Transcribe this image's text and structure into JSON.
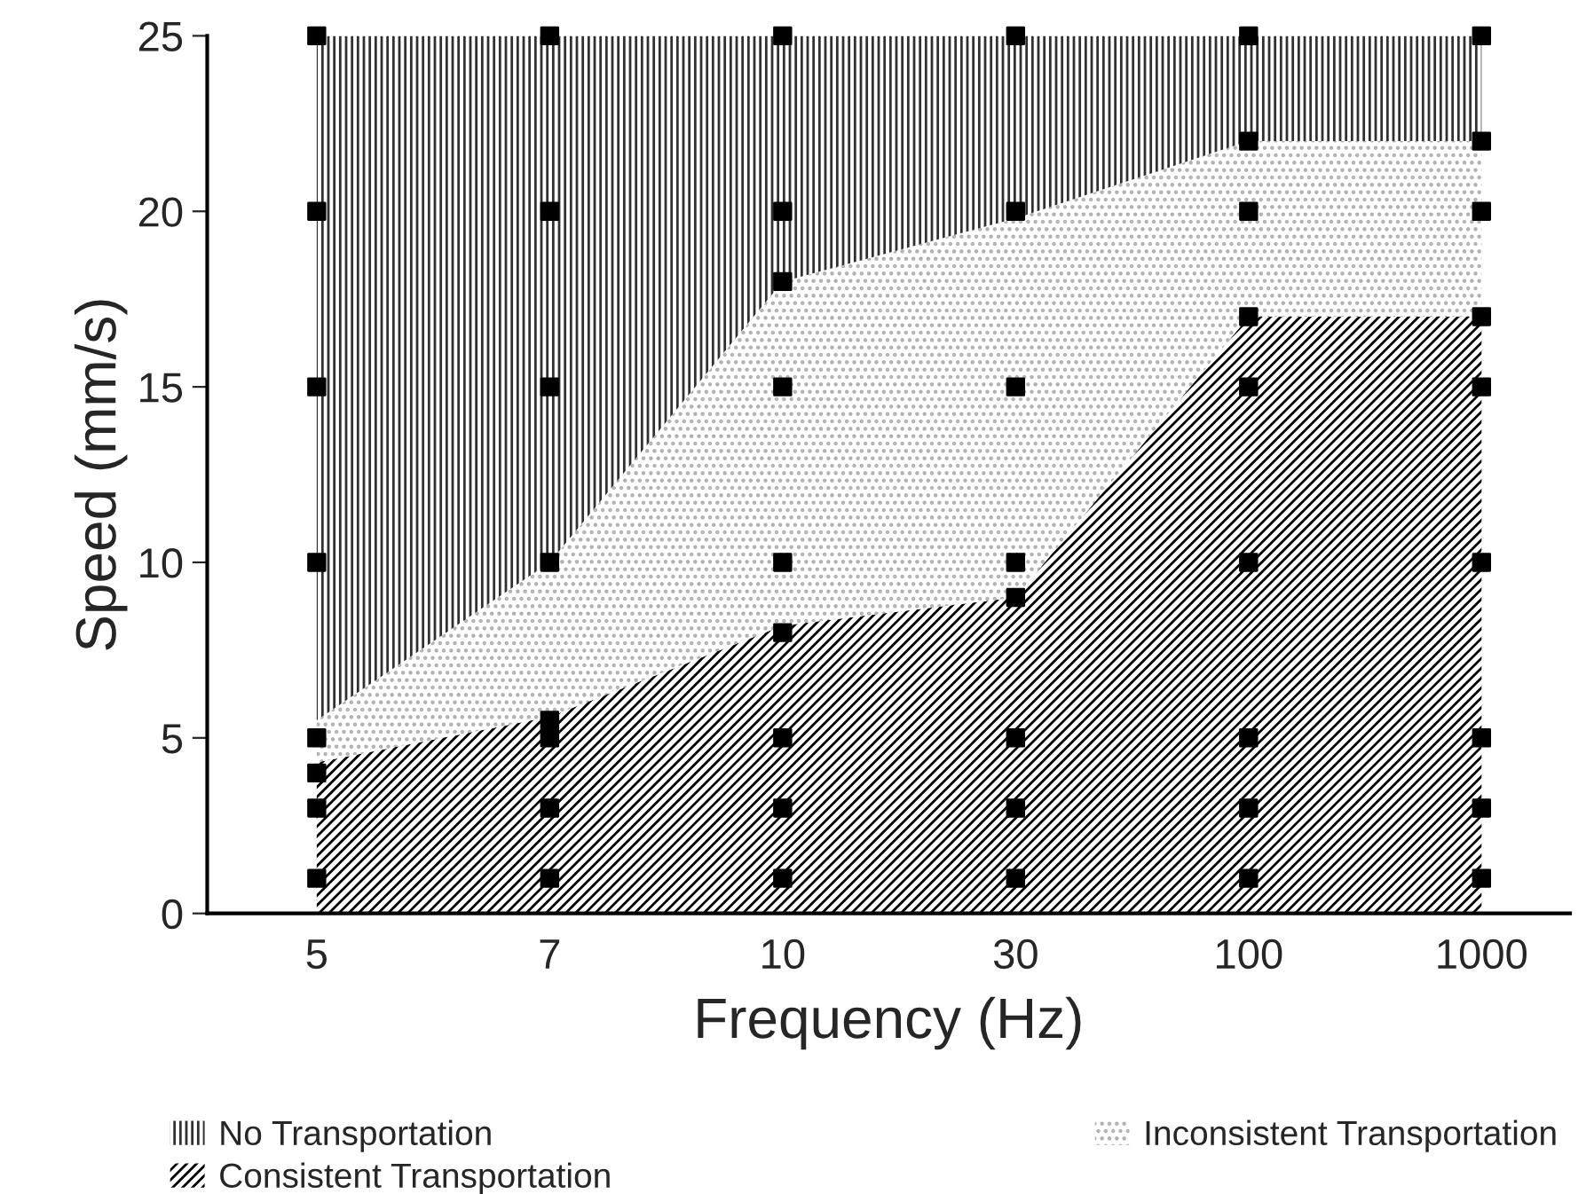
{
  "chart_data": {
    "type": "area",
    "stacked": true,
    "xlabel": "Frequency (Hz)",
    "ylabel": "Speed (mm/s)",
    "categories": [
      "5",
      "7",
      "10",
      "30",
      "100",
      "1000"
    ],
    "ylim": [
      0,
      25
    ],
    "yticks": [
      0,
      5,
      10,
      15,
      20,
      25
    ],
    "grid": false,
    "legend": "bottom",
    "series": [
      {
        "name": "Consistent Transportation",
        "color": "#000000",
        "values": [
          4.3,
          5.6,
          8.2,
          9,
          17,
          17
        ]
      },
      {
        "name": "Inconsistent Transportation",
        "color": "#b0b0b0",
        "values": [
          1.2,
          4.4,
          9.8,
          10.8,
          5,
          5
        ]
      },
      {
        "name": "No Transportation",
        "color": "#303030",
        "values": [
          19.5,
          15,
          7,
          5.2,
          3,
          3
        ]
      },
      {
        "type": "scatter",
        "color": "#000000",
        "marker": "square",
        "values": [
          1,
          1,
          1,
          1,
          1,
          1
        ]
      },
      {
        "type": "scatter",
        "color": "#000000",
        "marker": "square",
        "values": [
          3,
          3,
          3,
          3,
          3,
          3
        ]
      },
      {
        "type": "scatter",
        "color": "#000000",
        "marker": "square",
        "values": [
          4,
          5.5,
          8,
          9,
          null,
          null
        ]
      },
      {
        "type": "scatter",
        "color": "#000000",
        "marker": "square",
        "values": [
          5,
          5,
          5,
          5,
          5,
          5
        ]
      },
      {
        "type": "scatter",
        "color": "#000000",
        "marker": "square",
        "values": [
          10,
          10,
          10,
          10,
          10,
          10
        ]
      },
      {
        "type": "scatter",
        "color": "#000000",
        "marker": "square",
        "values": [
          15,
          15,
          15,
          15,
          15,
          15
        ]
      },
      {
        "type": "scatter",
        "color": "#000000",
        "marker": "square",
        "values": [
          null,
          null,
          18,
          null,
          17,
          17
        ]
      },
      {
        "type": "scatter",
        "color": "#000000",
        "marker": "square",
        "values": [
          20,
          20,
          20,
          20,
          20,
          20
        ]
      },
      {
        "type": "scatter",
        "color": "#000000",
        "marker": "square",
        "values": [
          null,
          null,
          null,
          null,
          22,
          22
        ]
      },
      {
        "type": "scatter",
        "color": "#000000",
        "marker": "square",
        "values": [
          25,
          25,
          25,
          25,
          25,
          25
        ]
      }
    ]
  }
}
